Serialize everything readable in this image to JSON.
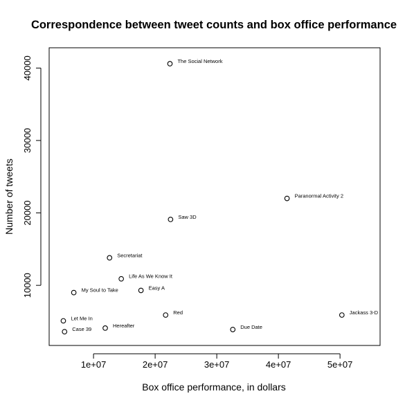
{
  "chart_data": {
    "type": "scatter",
    "title": "Correspondence between tweet counts and box office performance",
    "xlabel": "Box office performance, in dollars",
    "ylabel": "Number of tweets",
    "xlim": [
      2800000,
      56500000
    ],
    "ylim": [
      2700000,
      3000
    ],
    "ylim_note": "",
    "x_ticks": [
      10000000,
      20000000,
      30000000,
      40000000,
      50000000
    ],
    "x_tick_labels": [
      "1e+07",
      "2e+07",
      "3e+07",
      "4e+07",
      "5e+07"
    ],
    "y_ticks": [
      10000,
      20000,
      30000,
      40000
    ],
    "y_tick_labels": [
      "10000",
      "20000",
      "30000",
      "40000"
    ],
    "points": [
      {
        "label": "The Social Network",
        "x": 22400000,
        "y": 40600
      },
      {
        "label": "Paranormal Activity 2",
        "x": 41400000,
        "y": 22000
      },
      {
        "label": "Saw 3D",
        "x": 22500000,
        "y": 19100
      },
      {
        "label": "Secretariat",
        "x": 12600000,
        "y": 13800
      },
      {
        "label": "Life As We Know It",
        "x": 14500000,
        "y": 10900
      },
      {
        "label": "Easy A",
        "x": 17700000,
        "y": 9300
      },
      {
        "label": "My Soul to Take",
        "x": 6800000,
        "y": 9000
      },
      {
        "label": "Red",
        "x": 21700000,
        "y": 5900
      },
      {
        "label": "Jackass 3-D",
        "x": 50300000,
        "y": 5900
      },
      {
        "label": "Let Me In",
        "x": 5100000,
        "y": 5100
      },
      {
        "label": "Hereafter",
        "x": 11900000,
        "y": 4100
      },
      {
        "label": "Due Date",
        "x": 32600000,
        "y": 3900
      },
      {
        "label": "Case 39",
        "x": 5300000,
        "y": 3600
      }
    ]
  }
}
